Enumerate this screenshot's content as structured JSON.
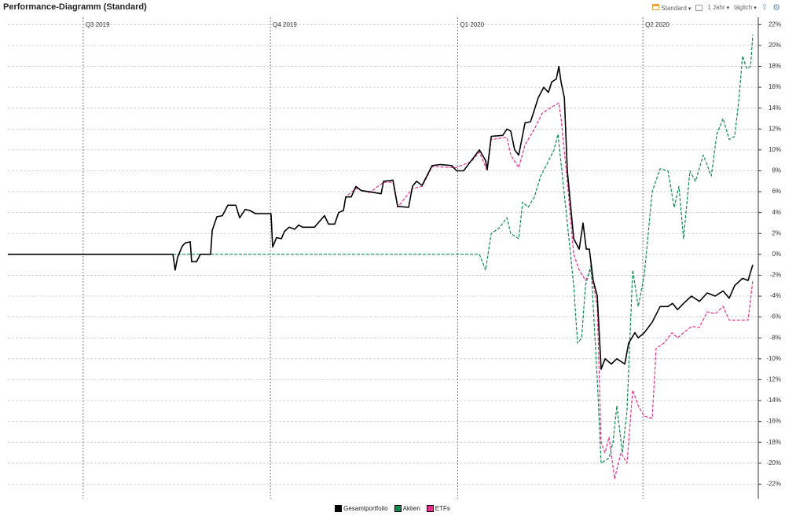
{
  "toolbar": {
    "view": "Standard",
    "period": "1 Jahr",
    "interval": "täglich"
  },
  "chart_data": {
    "type": "line",
    "title": "Performance-Diagramm (Standard)",
    "xlim": [
      0,
      366
    ],
    "ylim": [
      -23.4,
      22.7
    ],
    "grid": true,
    "y_axis_side": "right",
    "legend_position": "bottom",
    "xticks": [
      {
        "value": 37,
        "label": "Q3 2019"
      },
      {
        "value": 129,
        "label": "Q4 2019"
      },
      {
        "value": 221,
        "label": "Q1 2020"
      },
      {
        "value": 312,
        "label": "Q2 2020"
      }
    ],
    "yticks": [
      {
        "value": 22,
        "label": "22%"
      },
      {
        "value": 20,
        "label": "20%"
      },
      {
        "value": 18,
        "label": "18%"
      },
      {
        "value": 16,
        "label": "16%"
      },
      {
        "value": 14,
        "label": "14%"
      },
      {
        "value": 12,
        "label": "12%"
      },
      {
        "value": 10,
        "label": "10%"
      },
      {
        "value": 8,
        "label": "8%"
      },
      {
        "value": 6,
        "label": "6%"
      },
      {
        "value": 4,
        "label": "4%"
      },
      {
        "value": 2,
        "label": "2%"
      },
      {
        "value": 0,
        "label": "0%"
      },
      {
        "value": -2,
        "label": "-2%"
      },
      {
        "value": -4,
        "label": "-4%"
      },
      {
        "value": -6,
        "label": "-6%"
      },
      {
        "value": -8,
        "label": "-8%"
      },
      {
        "value": -10,
        "label": "-10%"
      },
      {
        "value": -12,
        "label": "-12%"
      },
      {
        "value": -14,
        "label": "-14%"
      },
      {
        "value": -16,
        "label": "-16%"
      },
      {
        "value": -18,
        "label": "-18%"
      },
      {
        "value": -20,
        "label": "-20%"
      },
      {
        "value": -22,
        "label": "-22%"
      }
    ],
    "series": [
      {
        "name": "Gesamtportfolio",
        "color": "#000000",
        "dashed": false,
        "x": [
          0,
          81.1,
          82.2,
          83.4,
          85.7,
          87.3,
          89.6,
          90.3,
          92.7,
          94.6,
          99.6,
          100.4,
          102.7,
          105.4,
          108.1,
          112.0,
          113.9,
          116.6,
          118.9,
          121.6,
          129.3,
          130.1,
          132.0,
          134.4,
          135.9,
          138.2,
          140.9,
          142.9,
          144.8,
          150.6,
          155.6,
          157.5,
          160.6,
          162.5,
          164.9,
          166.0,
          168.7,
          171.0,
          173.7,
          177.6,
          183.4,
          184.6,
          189.2,
          191.5,
          196.9,
          198.8,
          200.8,
          203.5,
          208.5,
          212.4,
          218.1,
          220.5,
          223.9,
          227.8,
          231.7,
          234.7,
          235.5,
          237.5,
          243.2,
          245.2,
          247.1,
          249.0,
          251.0,
          254.1,
          256.8,
          260.6,
          263.3,
          265.6,
          267.2,
          269.5,
          270.7,
          271.8,
          273.4,
          274.9,
          278.0,
          280.7,
          282.6,
          284.2,
          285.7,
          287.6,
          289.6,
          291.5,
          293.4,
          296.5,
          299.2,
          303.1,
          305.0,
          308.1,
          309.7,
          312.7,
          316.6,
          320.5,
          324.3,
          326.6,
          329.0,
          332.0,
          335.9,
          339.8,
          343.6,
          347.5,
          351.4,
          354.4,
          357.1,
          361.0,
          363.7,
          366
        ],
        "values": [
          0,
          0,
          -1.5,
          -0.3,
          0.8,
          1.1,
          1.2,
          -0.7,
          -0.7,
          0,
          0,
          2.3,
          3.6,
          3.7,
          4.7,
          4.7,
          3.5,
          4.3,
          4.2,
          3.9,
          3.9,
          0.7,
          1.6,
          1.5,
          2.2,
          2.6,
          2.4,
          2.8,
          2.6,
          2.6,
          3.7,
          2.9,
          2.9,
          4.0,
          4.2,
          5.5,
          5.5,
          6.5,
          6.1,
          6.0,
          5.8,
          7.0,
          7.1,
          4.6,
          4.5,
          6.5,
          7.0,
          6.6,
          8.5,
          8.6,
          8.5,
          8.0,
          8.0,
          9.0,
          10.0,
          9.0,
          8.1,
          11.3,
          11.4,
          12.0,
          11.8,
          10.0,
          9.5,
          12.6,
          12.7,
          15.0,
          16.0,
          15.5,
          16.5,
          16.8,
          18.0,
          16.5,
          15.0,
          8.0,
          1.5,
          0.5,
          3.0,
          0.5,
          0.5,
          -2.5,
          -4.0,
          -11.0,
          -10.0,
          -10.5,
          -10.0,
          -10.5,
          -8.5,
          -7.5,
          -8.0,
          -7.5,
          -6.5,
          -5.0,
          -5.0,
          -4.7,
          -5.3,
          -4.7,
          -4.0,
          -4.5,
          -3.7,
          -4.0,
          -3.5,
          -4.2,
          -3.0,
          -2.3,
          -2.5,
          -1.0
        ]
      },
      {
        "name": "Aktien",
        "color": "#0e8a4f",
        "dashed": true,
        "x": [
          0,
          231.7,
          234.7,
          237.5,
          241.3,
          245.2,
          247.1,
          251.0,
          252.9,
          255.6,
          258.7,
          261.8,
          264.5,
          268.3,
          270.3,
          272.2,
          274.9,
          278.0,
          279.9,
          281.9,
          283.8,
          286.5,
          289.6,
          291.5,
          295.4,
          297.3,
          299.2,
          301.9,
          304.2,
          307.0,
          309.7,
          312.7,
          316.6,
          320.5,
          324.3,
          327.4,
          329.7,
          332.0,
          335.1,
          337.8,
          341.7,
          345.6,
          348.3,
          351.4,
          354.4,
          357.1,
          359.0,
          361.0,
          362.9,
          364.9,
          366
        ],
        "values": [
          0,
          0,
          -1.5,
          2.0,
          2.5,
          3.5,
          2.0,
          1.5,
          5.0,
          4.5,
          5.5,
          7.5,
          8.5,
          10.0,
          11.5,
          8.0,
          3.0,
          -3.0,
          -8.5,
          -8.0,
          -3.0,
          -1.0,
          -12.0,
          -20.0,
          -19.5,
          -18.0,
          -14.5,
          -19.0,
          -15.0,
          -1.5,
          -5.0,
          -2.0,
          6.0,
          8.2,
          8.0,
          4.5,
          6.5,
          1.5,
          8.0,
          7.0,
          9.5,
          7.5,
          11.5,
          13.0,
          11.0,
          11.3,
          14.5,
          19.0,
          17.8,
          18.0,
          21.0
        ]
      },
      {
        "name": "ETFs",
        "color": "#e6318c",
        "dashed": true,
        "x": [
          0,
          81.1,
          82.2,
          83.4,
          85.7,
          87.3,
          89.6,
          90.3,
          92.7,
          94.6,
          99.6,
          100.4,
          102.7,
          105.4,
          108.1,
          112.0,
          113.9,
          116.6,
          118.9,
          121.6,
          129.3,
          130.1,
          132.0,
          134.4,
          135.9,
          138.2,
          140.9,
          142.9,
          144.8,
          150.6,
          155.6,
          157.5,
          160.6,
          162.5,
          164.9,
          166.0,
          171.0,
          177.6,
          184.6,
          189.2,
          191.5,
          198.8,
          203.5,
          208.5,
          220.1,
          227.8,
          231.7,
          235.5,
          237.5,
          245.2,
          247.1,
          251.0,
          254.1,
          258.7,
          262.5,
          266.4,
          270.7,
          271.8,
          274.9,
          278.0,
          280.7,
          283.8,
          286.5,
          289.6,
          291.5,
          293.4,
          295.4,
          298.1,
          301.2,
          304.2,
          307.0,
          309.7,
          312.7,
          316.6,
          318.5,
          322.4,
          326.3,
          329.0,
          332.0,
          335.9,
          339.8,
          343.6,
          347.5,
          351.4,
          354.4,
          363.7,
          366
        ],
        "values": [
          0,
          0,
          -1.5,
          -0.3,
          0.8,
          1.1,
          1.2,
          -0.7,
          -0.7,
          0,
          0,
          2.3,
          3.6,
          3.7,
          4.7,
          4.7,
          3.5,
          4.3,
          4.2,
          3.9,
          3.9,
          0.7,
          1.6,
          1.5,
          2.2,
          2.6,
          2.4,
          2.8,
          2.6,
          2.6,
          3.7,
          2.9,
          2.9,
          4.0,
          4.2,
          5.5,
          6.3,
          5.9,
          6.9,
          6.9,
          4.5,
          6.3,
          6.5,
          8.4,
          8.3,
          8.9,
          9.8,
          8.0,
          11.0,
          11.2,
          9.5,
          8.3,
          10.5,
          12.0,
          13.5,
          14.0,
          14.5,
          13.0,
          7.0,
          0.0,
          -1.5,
          -2.5,
          -1.5,
          -5.0,
          -18.0,
          -19.0,
          -17.5,
          -21.5,
          -19.0,
          -20.0,
          -13.0,
          -14.5,
          -15.5,
          -15.7,
          -9.0,
          -8.5,
          -7.5,
          -8.0,
          -7.5,
          -6.9,
          -7.0,
          -5.5,
          -5.7,
          -5.0,
          -6.3,
          -6.3,
          -2.5
        ]
      }
    ]
  }
}
